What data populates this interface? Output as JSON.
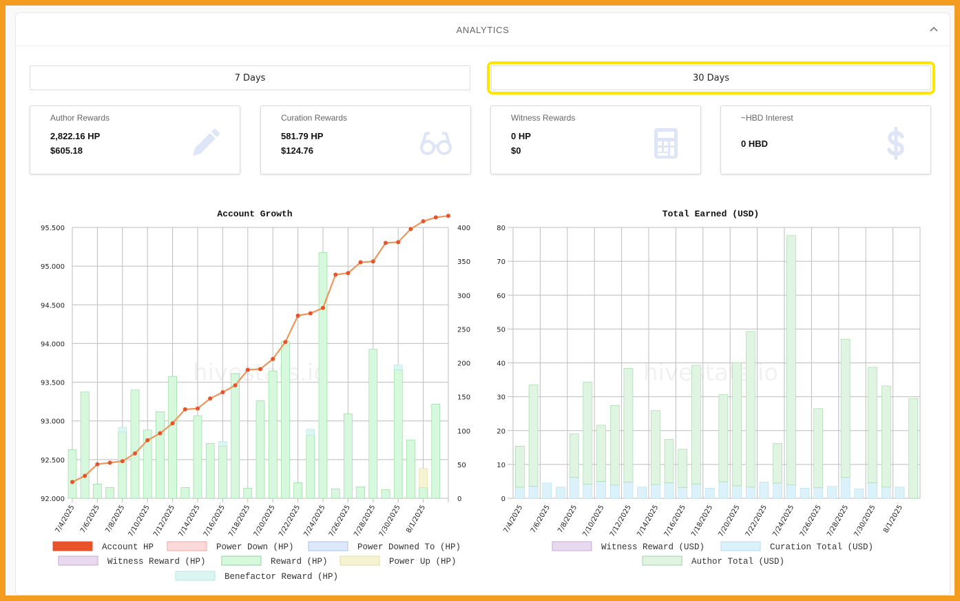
{
  "panel": {
    "title": "ANALYTICS",
    "collapse_icon": "chevron-up-icon"
  },
  "range_buttons": [
    {
      "label": "7 Days",
      "highlighted": false
    },
    {
      "label": "30 Days",
      "highlighted": true
    }
  ],
  "cards": {
    "author": {
      "title": "Author Rewards",
      "hp": "2,822.16 HP",
      "usd": "$605.18",
      "icon": "pencil-icon"
    },
    "curation": {
      "title": "Curation Rewards",
      "hp": "581.79 HP",
      "usd": "$124.76",
      "icon": "glasses-icon"
    },
    "witness": {
      "title": "Witness Rewards",
      "hp": "0 HP",
      "usd": "$0",
      "icon": "calculator-icon"
    },
    "interest": {
      "title": "~HBD Interest",
      "value": "0 HBD",
      "icon": "dollar-icon"
    }
  },
  "watermark": "hivestats.io",
  "colors": {
    "account_hp": "#e8532c",
    "account_hp_line": "#f0955a",
    "power_down": "#fcd9d9",
    "power_downed_to": "#dde8fc",
    "witness": "#e9d9ef",
    "reward": "#d6f8dc",
    "reward_border": "#8fd49a",
    "power_up": "#f6f3d2",
    "benefactor": "#dbf5f2",
    "curation_usd": "#dcf2fa",
    "author_usd": "#dff5e2",
    "grid": "#bdbdbd"
  },
  "chart_data": [
    {
      "type": "bar",
      "title": "Account Growth",
      "x": [
        "7/4/2025",
        "7/5/2025",
        "7/6/2025",
        "7/7/2025",
        "7/8/2025",
        "7/9/2025",
        "7/10/2025",
        "7/11/2025",
        "7/12/2025",
        "7/13/2025",
        "7/14/2025",
        "7/15/2025",
        "7/16/2025",
        "7/17/2025",
        "7/18/2025",
        "7/19/2025",
        "7/20/2025",
        "7/21/2025",
        "7/22/2025",
        "7/23/2025",
        "7/24/2025",
        "7/25/2025",
        "7/26/2025",
        "7/27/2025",
        "7/28/2025",
        "7/29/2025",
        "7/30/2025",
        "7/31/2025",
        "8/1/2025",
        "8/2/2025",
        "8/3/2025"
      ],
      "x_tick_labels": [
        "7/4/2025",
        "7/6/2025",
        "7/8/2025",
        "7/10/2025",
        "7/12/2025",
        "7/14/2025",
        "7/16/2025",
        "7/18/2025",
        "7/20/2025",
        "7/22/2025",
        "7/24/2025",
        "7/26/2025",
        "7/28/2025",
        "7/30/2025",
        "8/1/2025"
      ],
      "y_left": {
        "range": [
          92.0,
          95.5
        ],
        "ticks": [
          "92.000",
          "92.500",
          "93.000",
          "93.500",
          "94.000",
          "94.500",
          "95.000",
          "95.500"
        ]
      },
      "y_right": {
        "range": [
          0,
          400
        ],
        "ticks": [
          "0",
          "50",
          "100",
          "150",
          "200",
          "250",
          "300",
          "350",
          "400"
        ]
      },
      "grid": true,
      "legend_position": "bottom",
      "series": [
        {
          "name": "Account HP",
          "axis": "left",
          "kind": "line",
          "values": [
            92.21,
            92.29,
            92.44,
            92.46,
            92.48,
            92.58,
            92.75,
            92.84,
            92.97,
            93.15,
            93.16,
            93.29,
            93.37,
            93.46,
            93.66,
            93.67,
            93.8,
            94.02,
            94.36,
            94.39,
            94.46,
            94.89,
            94.91,
            95.05,
            95.06,
            95.3,
            95.31,
            95.48,
            95.58,
            95.63,
            95.65
          ]
        },
        {
          "name": "Power Down (HP)",
          "axis": "right",
          "kind": "bar",
          "values": [
            0,
            0,
            0,
            0,
            0,
            0,
            0,
            0,
            0,
            0,
            0,
            0,
            0,
            0,
            0,
            0,
            0,
            0,
            0,
            0,
            0,
            0,
            0,
            0,
            0,
            0,
            0,
            0,
            0,
            0,
            0
          ]
        },
        {
          "name": "Power Downed To (HP)",
          "axis": "right",
          "kind": "bar",
          "values": [
            0,
            0,
            0,
            0,
            0,
            0,
            0,
            0,
            0,
            0,
            0,
            0,
            0,
            0,
            0,
            0,
            0,
            0,
            0,
            0,
            0,
            0,
            0,
            0,
            0,
            0,
            0,
            0,
            0,
            0,
            0
          ]
        },
        {
          "name": "Witness Reward (HP)",
          "axis": "right",
          "kind": "bar",
          "values": [
            0,
            0,
            0,
            0,
            0,
            0,
            0,
            0,
            0,
            0,
            0,
            0,
            0,
            0,
            0,
            0,
            0,
            0,
            0,
            0,
            0,
            0,
            0,
            0,
            0,
            0,
            0,
            0,
            0,
            0,
            0
          ]
        },
        {
          "name": "Reward (HP)",
          "axis": "right",
          "kind": "bar",
          "values": [
            72,
            157,
            21,
            16,
            98,
            160,
            101,
            128,
            180,
            16,
            122,
            81,
            77,
            184,
            15,
            144,
            188,
            232,
            23,
            93,
            363,
            14,
            125,
            17,
            220,
            13,
            190,
            86,
            16,
            139,
            0
          ]
        },
        {
          "name": "Power Up (HP)",
          "axis": "right",
          "kind": "bar",
          "values": [
            0,
            0,
            0,
            0,
            0,
            0,
            0,
            0,
            0,
            0,
            0,
            0,
            0,
            0,
            0,
            0,
            0,
            0,
            0,
            0,
            0,
            0,
            0,
            0,
            0,
            0,
            0,
            0,
            28,
            0,
            0
          ]
        },
        {
          "name": "Benefactor Reward (HP)",
          "axis": "right",
          "kind": "bar",
          "values": [
            0,
            0,
            0,
            0,
            7,
            0,
            0,
            0,
            0,
            0,
            0,
            0,
            7,
            0,
            0,
            0,
            0,
            0,
            0,
            9,
            0,
            0,
            0,
            0,
            0,
            0,
            7,
            0,
            0,
            0,
            0
          ]
        }
      ]
    },
    {
      "type": "bar",
      "title": "Total Earned (USD)",
      "x": [
        "7/4/2025",
        "7/5/2025",
        "7/6/2025",
        "7/7/2025",
        "7/8/2025",
        "7/9/2025",
        "7/10/2025",
        "7/11/2025",
        "7/12/2025",
        "7/13/2025",
        "7/14/2025",
        "7/15/2025",
        "7/16/2025",
        "7/17/2025",
        "7/18/2025",
        "7/19/2025",
        "7/20/2025",
        "7/21/2025",
        "7/22/2025",
        "7/23/2025",
        "7/24/2025",
        "7/25/2025",
        "7/26/2025",
        "7/27/2025",
        "7/28/2025",
        "7/29/2025",
        "7/30/2025",
        "7/31/2025",
        "8/1/2025",
        "8/2/2025"
      ],
      "x_tick_labels": [
        "7/4/2025",
        "7/6/2025",
        "7/8/2025",
        "7/10/2025",
        "7/12/2025",
        "7/14/2025",
        "7/16/2025",
        "7/18/2025",
        "7/20/2025",
        "7/22/2025",
        "7/24/2025",
        "7/26/2025",
        "7/28/2025",
        "7/30/2025",
        "8/1/2025"
      ],
      "y": {
        "range": [
          0,
          80
        ],
        "ticks": [
          "0",
          "10",
          "20",
          "30",
          "40",
          "50",
          "60",
          "70",
          "80"
        ]
      },
      "grid": true,
      "stacked": true,
      "legend_position": "bottom",
      "series": [
        {
          "name": "Witness Reward (USD)",
          "values": [
            0,
            0,
            0,
            0,
            0,
            0,
            0,
            0,
            0,
            0,
            0,
            0,
            0,
            0,
            0,
            0,
            0,
            0,
            0,
            0,
            0,
            0,
            0,
            0,
            0,
            0,
            0,
            0,
            0,
            0
          ]
        },
        {
          "name": "Curation Total (USD)",
          "values": [
            3.3,
            3.6,
            4.5,
            3.3,
            6.2,
            4.2,
            5.0,
            3.9,
            4.8,
            3.3,
            4.1,
            4.6,
            3.2,
            4.2,
            3.0,
            4.9,
            3.7,
            3.4,
            4.8,
            4.5,
            4.0,
            3.0,
            3.1,
            3.5,
            6.2,
            2.8,
            4.6,
            3.3,
            3.3,
            0
          ]
        },
        {
          "name": "Author Total (USD)",
          "values": [
            12.1,
            29.9,
            0,
            0,
            12.9,
            30.1,
            16.6,
            23.5,
            33.6,
            0,
            21.8,
            12.8,
            11.3,
            35.1,
            0,
            25.7,
            36.4,
            45.9,
            0,
            11.7,
            73.6,
            0,
            23.4,
            0,
            40.8,
            0,
            34.1,
            29.9,
            0,
            29.5
          ]
        }
      ]
    }
  ]
}
